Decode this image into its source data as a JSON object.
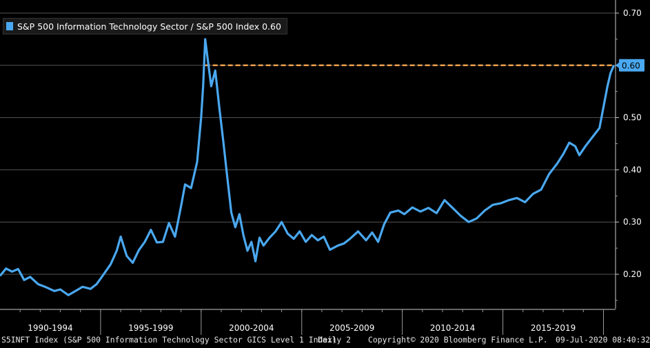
{
  "chart_data": {
    "type": "line",
    "legend": "S&P 500 Information Technology Sector / S&P 500 Index 0.60",
    "series": [
      {
        "name": "S&P 500 Information Technology Sector / S&P 500 Index",
        "color": "#4aa8f0",
        "points": [
          [
            1990.0,
            0.197
          ],
          [
            1990.3,
            0.211
          ],
          [
            1990.6,
            0.205
          ],
          [
            1990.9,
            0.21
          ],
          [
            1991.2,
            0.189
          ],
          [
            1991.5,
            0.195
          ],
          [
            1991.9,
            0.181
          ],
          [
            1992.3,
            0.175
          ],
          [
            1992.7,
            0.168
          ],
          [
            1993.0,
            0.171
          ],
          [
            1993.4,
            0.16
          ],
          [
            1993.8,
            0.169
          ],
          [
            1994.1,
            0.176
          ],
          [
            1994.5,
            0.172
          ],
          [
            1994.8,
            0.181
          ],
          [
            1995.1,
            0.197
          ],
          [
            1995.5,
            0.219
          ],
          [
            1995.8,
            0.245
          ],
          [
            1996.0,
            0.272
          ],
          [
            1996.3,
            0.235
          ],
          [
            1996.6,
            0.222
          ],
          [
            1996.9,
            0.246
          ],
          [
            1997.2,
            0.262
          ],
          [
            1997.5,
            0.285
          ],
          [
            1997.8,
            0.261
          ],
          [
            1998.1,
            0.262
          ],
          [
            1998.4,
            0.298
          ],
          [
            1998.7,
            0.272
          ],
          [
            1999.0,
            0.33
          ],
          [
            1999.2,
            0.372
          ],
          [
            1999.5,
            0.365
          ],
          [
            1999.8,
            0.415
          ],
          [
            2000.0,
            0.5
          ],
          [
            2000.1,
            0.56
          ],
          [
            2000.2,
            0.65
          ],
          [
            2000.35,
            0.605
          ],
          [
            2000.5,
            0.56
          ],
          [
            2000.7,
            0.59
          ],
          [
            2000.9,
            0.52
          ],
          [
            2001.1,
            0.455
          ],
          [
            2001.3,
            0.385
          ],
          [
            2001.5,
            0.318
          ],
          [
            2001.7,
            0.29
          ],
          [
            2001.9,
            0.315
          ],
          [
            2002.1,
            0.275
          ],
          [
            2002.3,
            0.245
          ],
          [
            2002.5,
            0.262
          ],
          [
            2002.7,
            0.225
          ],
          [
            2002.9,
            0.27
          ],
          [
            2003.1,
            0.255
          ],
          [
            2003.4,
            0.27
          ],
          [
            2003.7,
            0.282
          ],
          [
            2004.0,
            0.3
          ],
          [
            2004.3,
            0.278
          ],
          [
            2004.6,
            0.268
          ],
          [
            2004.9,
            0.282
          ],
          [
            2005.2,
            0.262
          ],
          [
            2005.5,
            0.275
          ],
          [
            2005.8,
            0.265
          ],
          [
            2006.1,
            0.272
          ],
          [
            2006.4,
            0.247
          ],
          [
            2006.8,
            0.255
          ],
          [
            2007.1,
            0.259
          ],
          [
            2007.4,
            0.268
          ],
          [
            2007.8,
            0.282
          ],
          [
            2008.2,
            0.265
          ],
          [
            2008.5,
            0.28
          ],
          [
            2008.8,
            0.262
          ],
          [
            2009.1,
            0.296
          ],
          [
            2009.4,
            0.318
          ],
          [
            2009.8,
            0.322
          ],
          [
            2010.1,
            0.315
          ],
          [
            2010.5,
            0.328
          ],
          [
            2010.9,
            0.32
          ],
          [
            2011.3,
            0.327
          ],
          [
            2011.7,
            0.317
          ],
          [
            2012.1,
            0.342
          ],
          [
            2012.5,
            0.327
          ],
          [
            2012.9,
            0.312
          ],
          [
            2013.3,
            0.3
          ],
          [
            2013.7,
            0.307
          ],
          [
            2014.1,
            0.322
          ],
          [
            2014.5,
            0.333
          ],
          [
            2014.9,
            0.336
          ],
          [
            2015.3,
            0.342
          ],
          [
            2015.7,
            0.346
          ],
          [
            2016.1,
            0.338
          ],
          [
            2016.5,
            0.354
          ],
          [
            2016.9,
            0.362
          ],
          [
            2017.3,
            0.392
          ],
          [
            2017.7,
            0.412
          ],
          [
            2018.0,
            0.43
          ],
          [
            2018.3,
            0.452
          ],
          [
            2018.6,
            0.445
          ],
          [
            2018.8,
            0.428
          ],
          [
            2019.1,
            0.445
          ],
          [
            2019.5,
            0.465
          ],
          [
            2019.8,
            0.48
          ],
          [
            2020.0,
            0.52
          ],
          [
            2020.2,
            0.56
          ],
          [
            2020.35,
            0.585
          ],
          [
            2020.52,
            0.6
          ]
        ]
      }
    ],
    "reference_line": {
      "value": 0.6,
      "color": "#f0a04a",
      "style": "dashed"
    },
    "last_value_label": "0.60",
    "y_axis": {
      "side": "right",
      "ticks": [
        "0.70",
        "0.60",
        "0.50",
        "0.40",
        "0.30",
        "0.20"
      ],
      "ylim": [
        0.14,
        0.72
      ]
    },
    "x_axis": {
      "tick_labels": [
        "1990-1994",
        "1995-1999",
        "2000-2004",
        "2005-2009",
        "2010-2014",
        "2015-2019"
      ],
      "xlim": [
        1990.0,
        2020.6
      ]
    },
    "grid": true
  },
  "footer": {
    "ticker": "S5INFT Index (S&P 500 Information Technology Sector GICS Level 1 Index)",
    "frequency": "Daily 2",
    "copyright": "Copyright© 2020 Bloomberg Finance L.P.",
    "timestamp": "09-Jul-2020 08:40:32"
  }
}
